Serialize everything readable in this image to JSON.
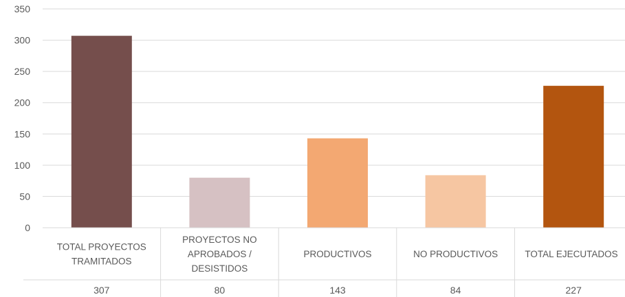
{
  "chart_data": {
    "type": "bar",
    "categories": [
      [
        "TOTAL PROYECTOS",
        "TRAMITADOS"
      ],
      [
        "PROYECTOS NO",
        "APROBADOS /",
        "DESISTIDOS"
      ],
      [
        "PRODUCTIVOS"
      ],
      [
        "NO PRODUCTIVOS"
      ],
      [
        "TOTAL EJECUTADOS"
      ]
    ],
    "values": [
      307,
      80,
      143,
      84,
      227
    ],
    "value_labels": [
      "307",
      "80",
      "143",
      "84",
      "227"
    ],
    "colors": [
      "#754E4C",
      "#D6C1C3",
      "#F3A872",
      "#F6C6A2",
      "#B3550F"
    ],
    "ylim": [
      0,
      350
    ],
    "yticks": [
      0,
      50,
      100,
      150,
      200,
      250,
      300,
      350
    ],
    "grid": true,
    "legend": "none",
    "data_table": true,
    "title": "",
    "xlabel": "",
    "ylabel": ""
  }
}
